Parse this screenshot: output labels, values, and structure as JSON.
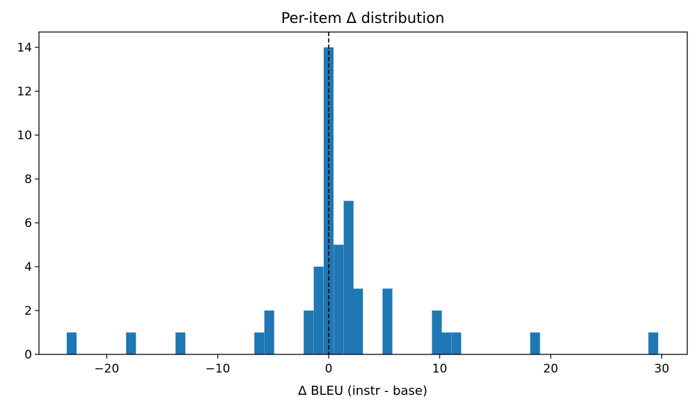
{
  "chart_data": {
    "type": "bar",
    "title": "Per-item Δ distribution",
    "xlabel": "Δ BLEU (instr - base)",
    "ylabel": "",
    "xlim": [
      -26.1,
      32.3
    ],
    "ylim": [
      0,
      14.7
    ],
    "xticks": [
      -20,
      -10,
      0,
      10,
      20,
      30
    ],
    "xtick_labels": [
      "−20",
      "−10",
      "0",
      "10",
      "20",
      "30"
    ],
    "yticks": [
      0,
      2,
      4,
      6,
      8,
      10,
      12,
      14
    ],
    "ytick_labels": [
      "0",
      "2",
      "4",
      "6",
      "8",
      "10",
      "12",
      "14"
    ],
    "bin_width": 0.885,
    "bins": [
      {
        "x0": -23.6,
        "count": 1
      },
      {
        "x0": -18.25,
        "count": 1
      },
      {
        "x0": -13.8,
        "count": 1
      },
      {
        "x0": -6.7,
        "count": 1
      },
      {
        "x0": -5.8,
        "count": 2
      },
      {
        "x0": -2.25,
        "count": 2
      },
      {
        "x0": -1.35,
        "count": 4
      },
      {
        "x0": -0.45,
        "count": 14
      },
      {
        "x0": 0.45,
        "count": 5
      },
      {
        "x0": 1.35,
        "count": 7
      },
      {
        "x0": 2.2,
        "count": 3
      },
      {
        "x0": 4.85,
        "count": 3
      },
      {
        "x0": 9.3,
        "count": 2
      },
      {
        "x0": 10.15,
        "count": 1
      },
      {
        "x0": 11.05,
        "count": 1
      },
      {
        "x0": 18.15,
        "count": 1
      },
      {
        "x0": 28.8,
        "count": 1
      }
    ],
    "reference_line": {
      "x": 0,
      "style": "dashed",
      "color": "#000000"
    },
    "bar_color": "#1f77b4",
    "grid": false,
    "legend": "none"
  }
}
